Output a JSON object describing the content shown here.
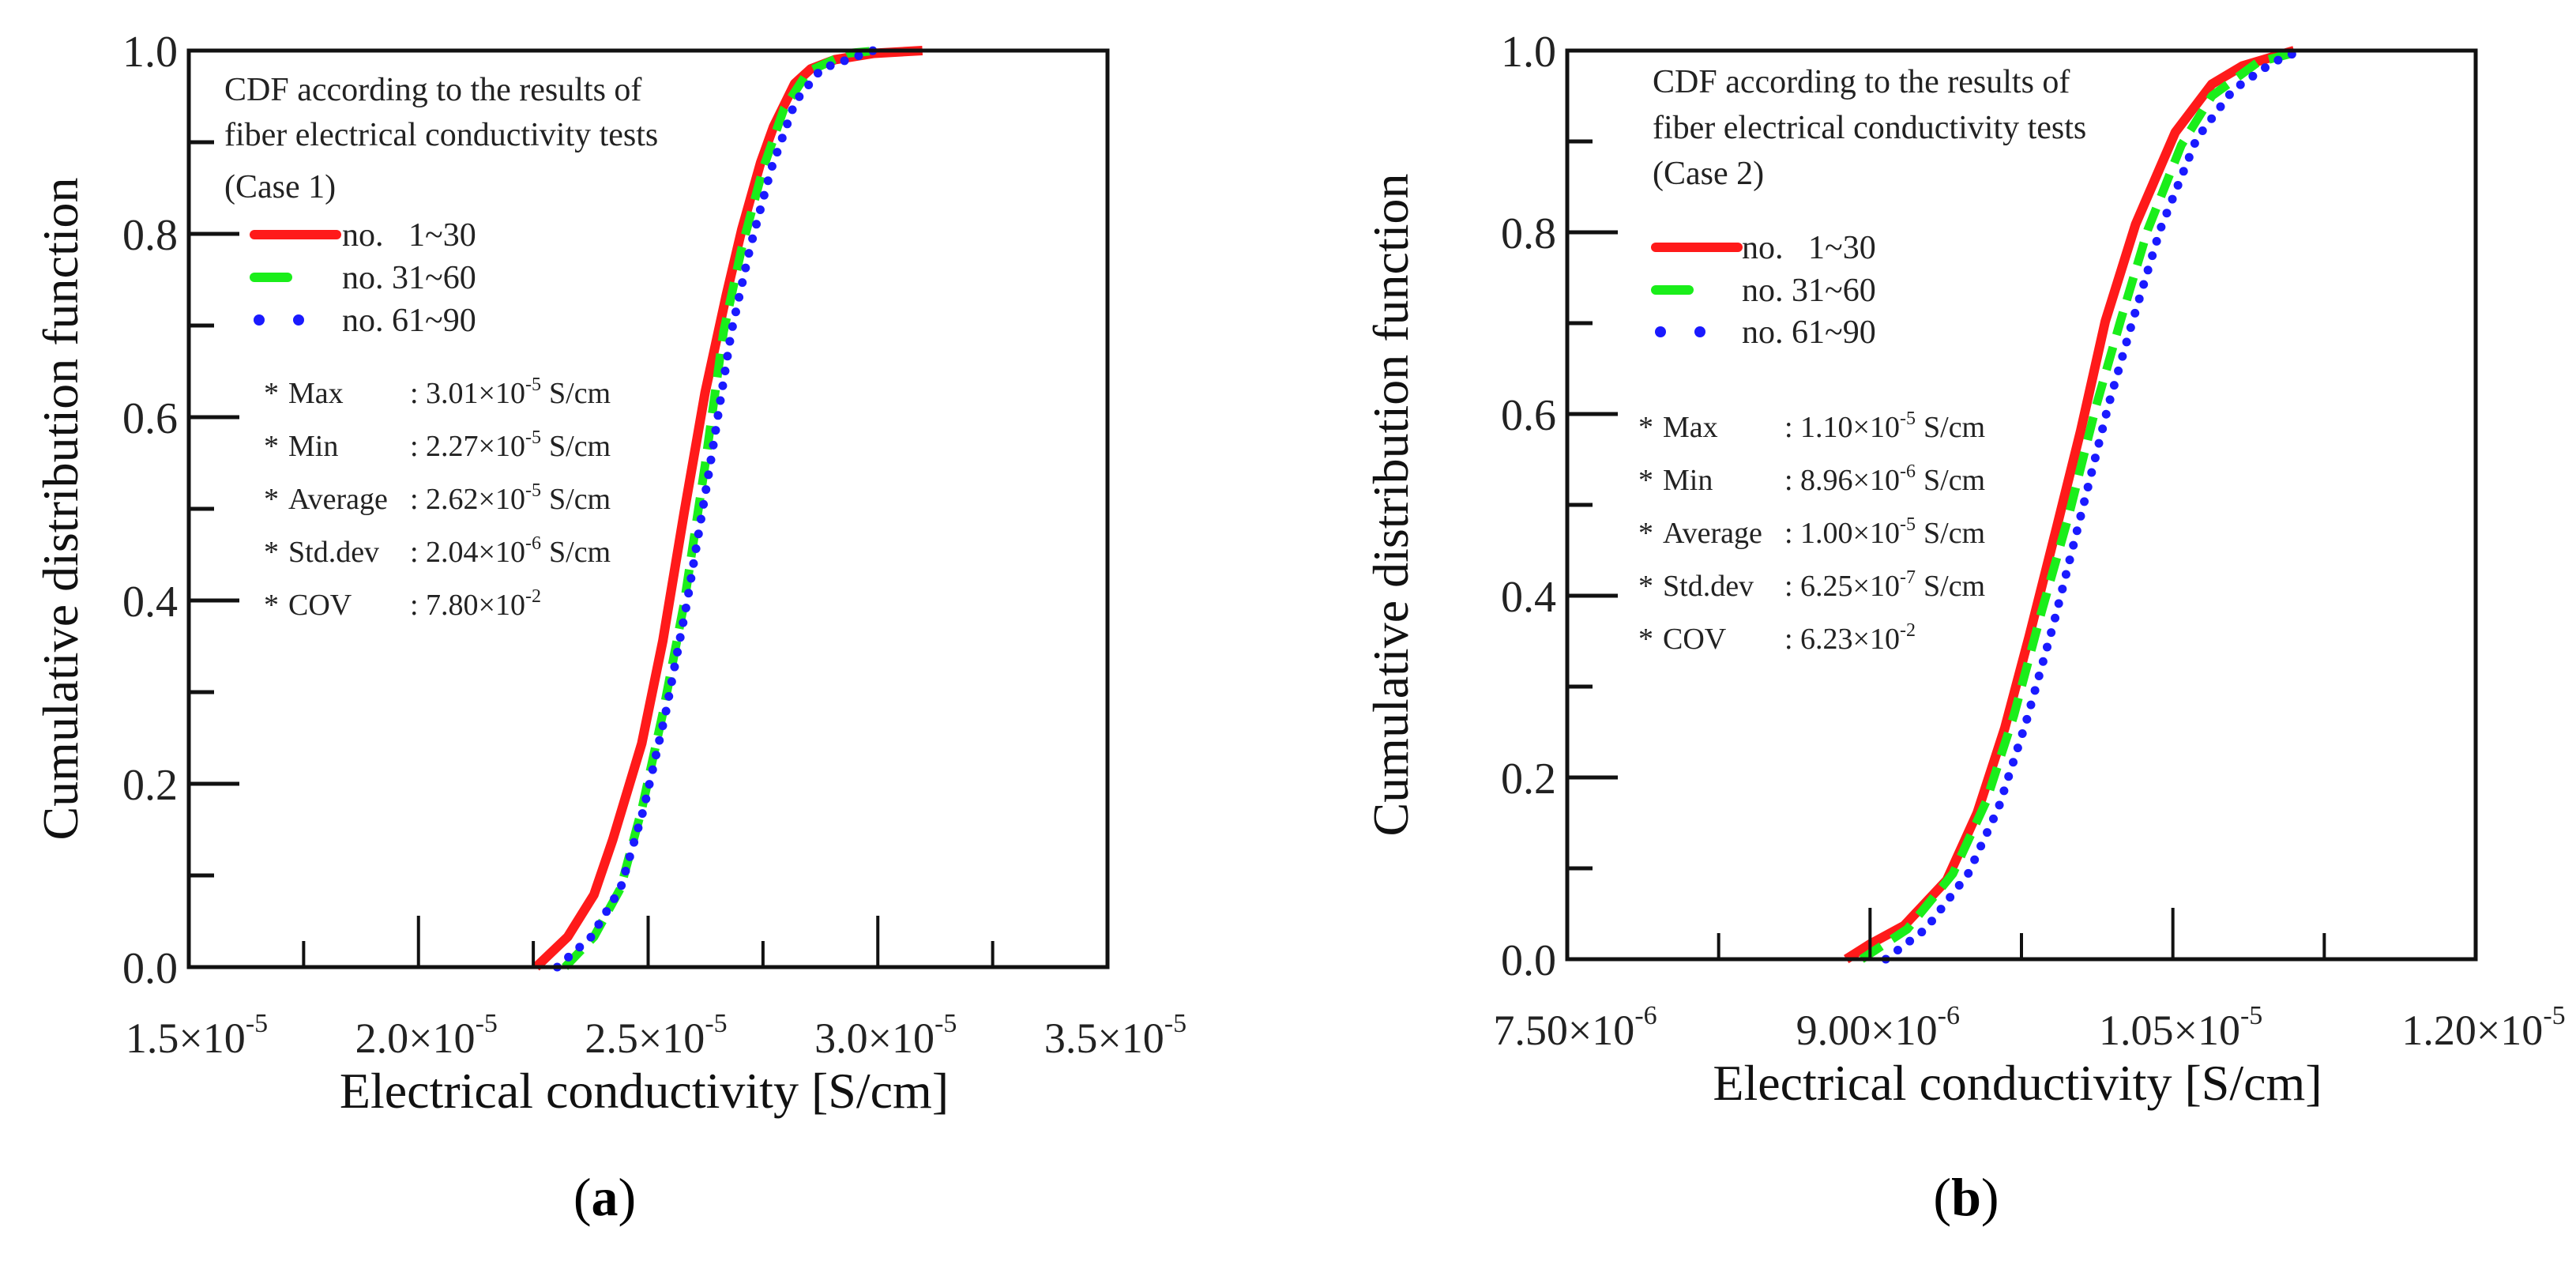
{
  "chart_data": [
    {
      "type": "line",
      "panel_label": "a",
      "xlabel": "Electrical conductivity  [S/cm]",
      "ylabel": "Cumulative distribution function",
      "xlim": [
        1.5e-05,
        3.5e-05
      ],
      "ylim": [
        0,
        1
      ],
      "grid": false,
      "x_major_ticks": [
        1.5e-05,
        2e-05,
        2.5e-05,
        3e-05,
        3.5e-05
      ],
      "x_minor_ticks": [
        1.75e-05,
        2.25e-05,
        2.75e-05,
        3.25e-05
      ],
      "x_tick_labels": [
        {
          "mantissa": "1.5×10",
          "exp": "-5"
        },
        {
          "mantissa": "2.0×10",
          "exp": "-5"
        },
        {
          "mantissa": "2.5×10",
          "exp": "-5"
        },
        {
          "mantissa": "3.0×10",
          "exp": "-5"
        },
        {
          "mantissa": "3.5×10",
          "exp": "-5"
        }
      ],
      "y_major_ticks": [
        0,
        0.2,
        0.4,
        0.6,
        0.8,
        1.0
      ],
      "y_minor_ticks": [
        0.1,
        0.3,
        0.5,
        0.7,
        0.9
      ],
      "y_tick_labels": [
        "0.0",
        "0.2",
        "0.4",
        "0.6",
        "0.8",
        "1.0"
      ],
      "annotation_lines": [
        "CDF according to the results of",
        "fiber electrical conductivity tests",
        "(Case 1)"
      ],
      "legend_placement": "top-left",
      "series": [
        {
          "name": "no.   1~30",
          "color": "#ff1a1a",
          "style": "solid",
          "x": [
            2.256e-05,
            2.325e-05,
            2.382e-05,
            2.423e-05,
            2.486e-05,
            2.532e-05,
            2.578e-05,
            2.624e-05,
            2.67e-05,
            2.704e-05,
            2.745e-05,
            2.773e-05,
            2.819e-05,
            2.854e-05,
            2.906e-05,
            2.992e-05,
            3.097e-05
          ],
          "y": [
            0,
            0.033,
            0.079,
            0.139,
            0.244,
            0.356,
            0.495,
            0.627,
            0.733,
            0.805,
            0.878,
            0.917,
            0.964,
            0.98,
            0.99,
            0.997,
            1.0
          ]
        },
        {
          "name": "no. 31~60",
          "color": "#1aee1a",
          "style": "dashed",
          "x": [
            2.319e-05,
            2.382e-05,
            2.44e-05,
            2.486e-05,
            2.532e-05,
            2.578e-05,
            2.624e-05,
            2.664e-05,
            2.704e-05,
            2.75e-05,
            2.796e-05,
            2.848e-05,
            2.934e-05,
            3e-05
          ],
          "y": [
            0,
            0.033,
            0.086,
            0.172,
            0.277,
            0.396,
            0.548,
            0.693,
            0.785,
            0.871,
            0.937,
            0.977,
            0.997,
            1.0
          ]
        },
        {
          "name": "no. 61~90",
          "color": "#1a1aff",
          "style": "dotted",
          "x": [
            2.302e-05,
            2.376e-05,
            2.44e-05,
            2.49e-05,
            2.538e-05,
            2.584e-05,
            2.635e-05,
            2.681e-05,
            2.722e-05,
            2.768e-05,
            2.82e-05,
            2.877e-05,
            2.99e-05
          ],
          "y": [
            0,
            0.033,
            0.086,
            0.172,
            0.277,
            0.396,
            0.548,
            0.693,
            0.785,
            0.871,
            0.944,
            0.98,
            1.0
          ]
        }
      ],
      "stats": [
        {
          "label": "Max",
          "value": ": 3.01×10",
          "exp": "-5",
          "unit": "S/cm"
        },
        {
          "label": "Min",
          "value": ": 2.27×10",
          "exp": "-5",
          "unit": "S/cm"
        },
        {
          "label": "Average",
          "value": ": 2.62×10",
          "exp": "-5",
          "unit": "S/cm"
        },
        {
          "label": "Std.dev",
          "value": ": 2.04×10",
          "exp": "-6",
          "unit": "S/cm"
        },
        {
          "label": "COV",
          "value": ": 7.80×10",
          "exp": "-2",
          "unit": ""
        }
      ],
      "stat_bullet": "*"
    },
    {
      "type": "line",
      "panel_label": "b",
      "xlabel": "Electrical conductivity  [S/cm]",
      "ylabel": "Cumulative distribution function",
      "xlim": [
        7.5e-06,
        1.2e-05
      ],
      "ylim": [
        0,
        1
      ],
      "grid": false,
      "x_major_ticks": [
        7.5e-06,
        9e-06,
        1.05e-05,
        1.2e-05
      ],
      "x_minor_ticks": [
        8.25e-06,
        9.75e-06,
        1.125e-05
      ],
      "x_tick_labels": [
        {
          "mantissa": "7.50×10",
          "exp": "-6"
        },
        {
          "mantissa": "9.00×10",
          "exp": "-6"
        },
        {
          "mantissa": "1.05×10",
          "exp": "-5"
        },
        {
          "mantissa": "1.20×10",
          "exp": "-5"
        }
      ],
      "y_major_ticks": [
        0,
        0.2,
        0.4,
        0.6,
        0.8,
        1.0
      ],
      "y_minor_ticks": [
        0.1,
        0.3,
        0.5,
        0.7,
        0.9
      ],
      "y_tick_labels": [
        "0.0",
        "0.2",
        "0.4",
        "0.6",
        "0.8",
        "1.0"
      ],
      "annotation_lines": [
        "CDF according to the results of",
        "fiber electrical conductivity tests",
        "(Case 2)"
      ],
      "legend_placement": "top-left",
      "series": [
        {
          "name": "no.   1~30",
          "color": "#ff1a1a",
          "style": "solid",
          "x": [
            8.882e-06,
            9.003e-06,
            9.169e-06,
            9.38e-06,
            9.531e-06,
            9.667e-06,
            9.788e-06,
            9.924e-06,
            1.0044e-05,
            1.0165e-05,
            1.0316e-05,
            1.0512e-05,
            1.0693e-05,
            1.0844e-05,
            1.11e-05
          ],
          "y": [
            0,
            0.017,
            0.037,
            0.087,
            0.161,
            0.254,
            0.355,
            0.475,
            0.582,
            0.702,
            0.809,
            0.91,
            0.963,
            0.983,
            1.0
          ]
        },
        {
          "name": "no. 31~60",
          "color": "#1aee1a",
          "style": "dashed",
          "x": [
            8.958e-06,
            9.184e-06,
            9.41e-06,
            9.576e-06,
            9.712e-06,
            9.848e-06,
            9.984e-06,
            1.012e-05,
            1.024e-05,
            1.0376e-05,
            1.0542e-05,
            1.0693e-05,
            1.092e-05,
            1.109e-05
          ],
          "y": [
            0,
            0.033,
            0.094,
            0.174,
            0.268,
            0.381,
            0.488,
            0.609,
            0.702,
            0.803,
            0.896,
            0.95,
            0.987,
            0.997
          ]
        },
        {
          "name": "no. 61~90",
          "color": "#1a1aff",
          "style": "dotted",
          "x": [
            9.078e-06,
            9.275e-06,
            9.486e-06,
            9.637e-06,
            9.773e-06,
            9.908e-06,
            1.0044e-05,
            1.018e-05,
            1.03e-05,
            1.0437e-05,
            1.0618e-05,
            1.0799e-05,
            1.0995e-05,
            1.11e-05
          ],
          "y": [
            0,
            0.033,
            0.094,
            0.167,
            0.261,
            0.368,
            0.488,
            0.609,
            0.702,
            0.803,
            0.903,
            0.957,
            0.987,
            0.997
          ]
        }
      ],
      "stats": [
        {
          "label": "Max",
          "value": ": 1.10×10",
          "exp": "-5",
          "unit": "S/cm"
        },
        {
          "label": "Min",
          "value": ": 8.96×10",
          "exp": "-6",
          "unit": "S/cm"
        },
        {
          "label": "Average",
          "value": ": 1.00×10",
          "exp": "-5",
          "unit": "S/cm"
        },
        {
          "label": "Std.dev",
          "value": ": 6.25×10",
          "exp": "-7",
          "unit": "S/cm"
        },
        {
          "label": "COV",
          "value": ": 6.23×10",
          "exp": "-2",
          "unit": ""
        }
      ],
      "stat_bullet": "*"
    }
  ]
}
